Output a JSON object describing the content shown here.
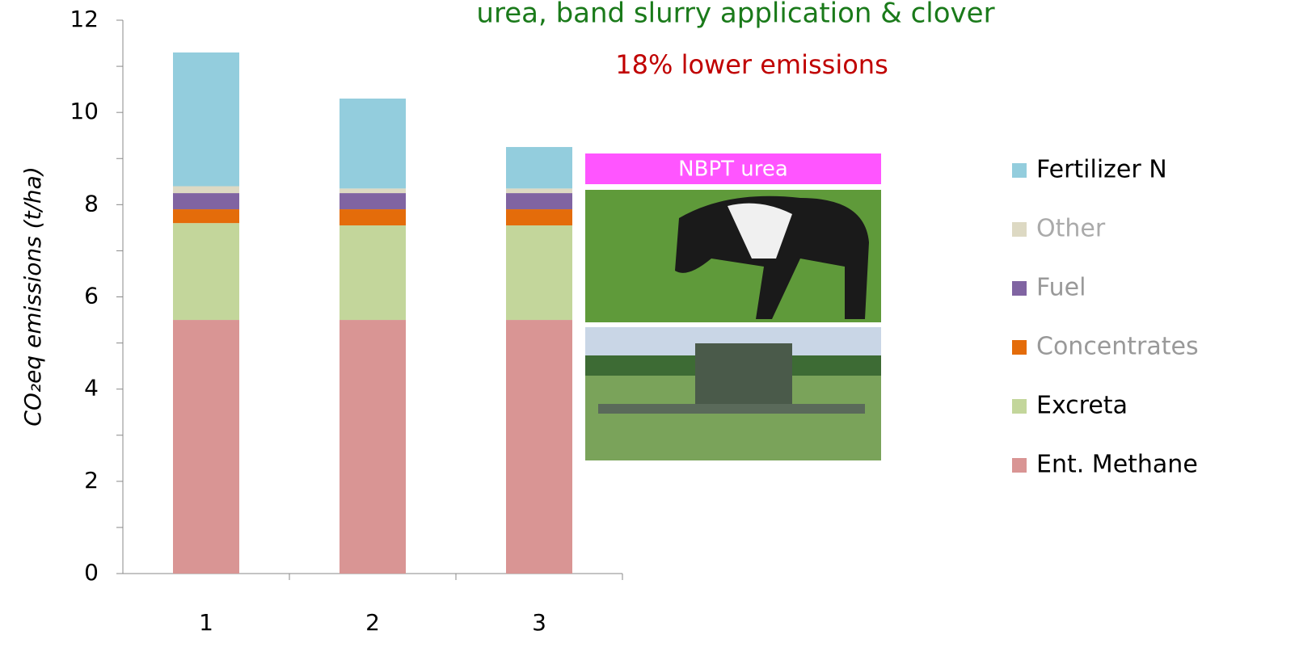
{
  "chart_data": {
    "type": "stacked_bar",
    "title": "urea, band slurry application & clover",
    "annotation": "18% lower emissions",
    "image_label": "NBPT urea",
    "y_label": "CO₂eq emissions (t/ha)",
    "categories": [
      "1",
      "2",
      "3"
    ],
    "series": [
      {
        "name": "Ent. Methane",
        "color": "#d99594",
        "values": [
          5.5,
          5.5,
          5.5
        ]
      },
      {
        "name": "Excreta",
        "color": "#c3d69b",
        "values": [
          2.1,
          2.05,
          2.05
        ]
      },
      {
        "name": "Concentrates",
        "color": "#e46c0a",
        "values": [
          0.3,
          0.35,
          0.35
        ]
      },
      {
        "name": "Fuel",
        "color": "#8064a2",
        "values": [
          0.35,
          0.35,
          0.35
        ]
      },
      {
        "name": "Other",
        "color": "#ddd9c3",
        "values": [
          0.15,
          0.1,
          0.1
        ]
      },
      {
        "name": "Fertilizer N",
        "color": "#93cddd",
        "values": [
          2.9,
          1.95,
          0.9
        ]
      }
    ],
    "ylim": [
      0,
      12
    ],
    "yticks": [
      0,
      2,
      4,
      6,
      8,
      10,
      12
    ],
    "grid": false
  }
}
